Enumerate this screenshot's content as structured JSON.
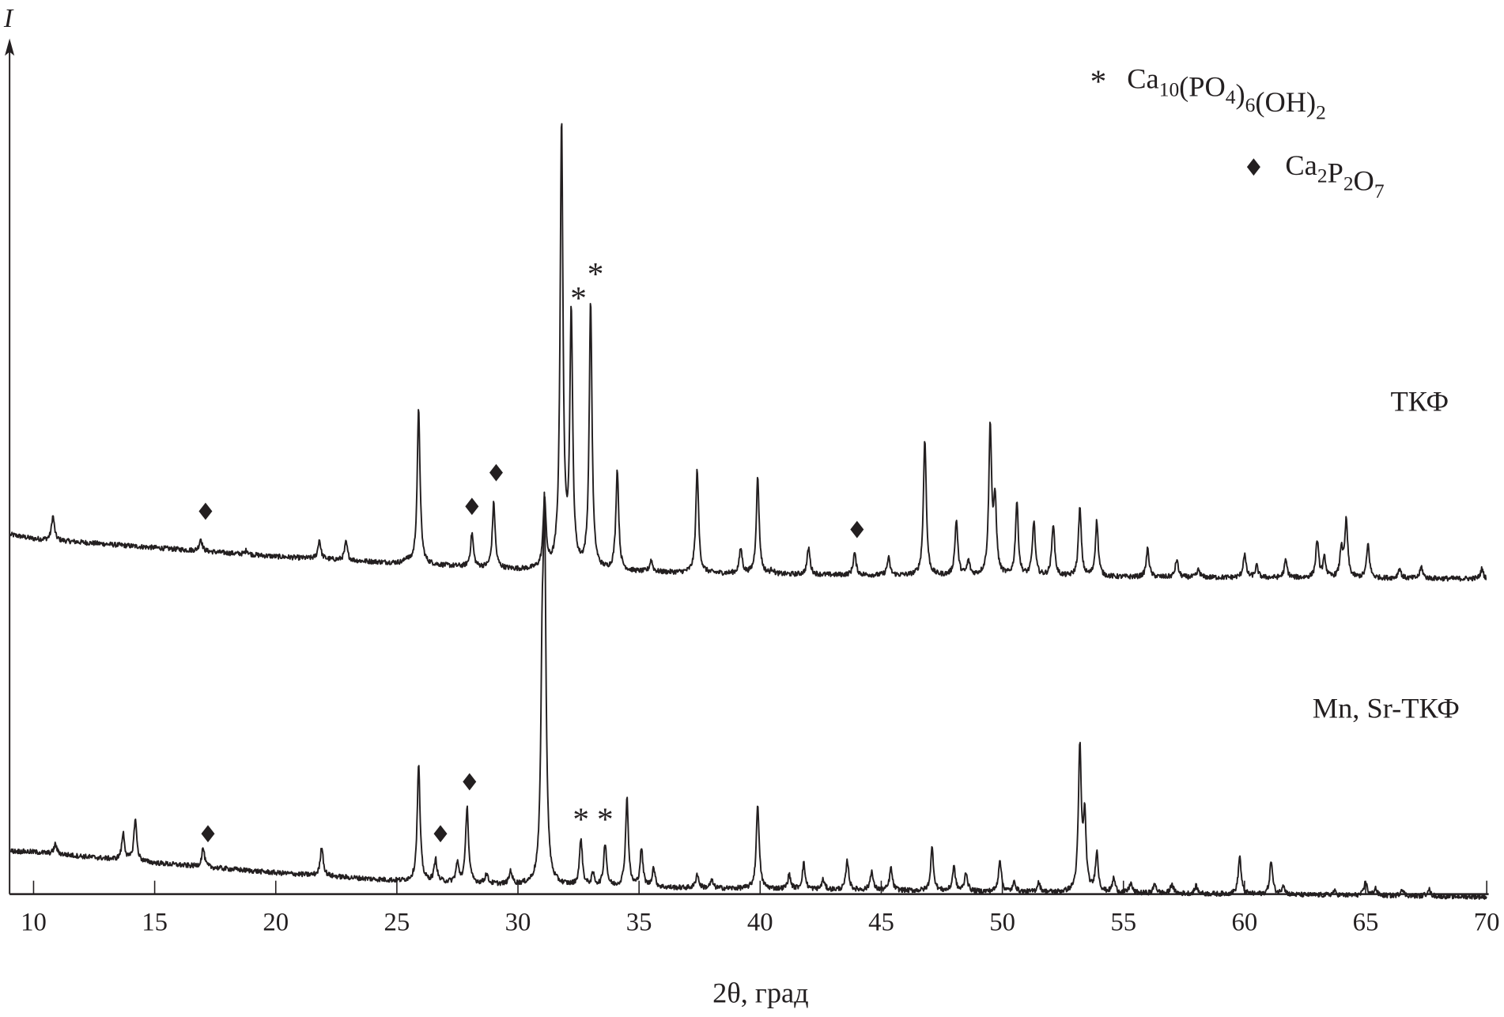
{
  "chart_data": {
    "type": "line",
    "title": "",
    "xlabel": "2θ, град",
    "ylabel": "I",
    "xlim": [
      9,
      70
    ],
    "xticks": [
      10,
      15,
      20,
      25,
      30,
      35,
      40,
      45,
      50,
      55,
      60,
      65,
      70
    ],
    "grid": false,
    "y_units": "relative intensity (tallest peak = 100), curves vertically offset",
    "legend": {
      "placement": "top-right",
      "entries": [
        {
          "marker": "asterisk",
          "label_main": "Ca",
          "label_parts": [
            [
              "Ca",
              ""
            ],
            [
              "10",
              "sub"
            ],
            [
              "(PO",
              ""
            ],
            [
              "4",
              "sub"
            ],
            [
              ")",
              ""
            ],
            [
              "6",
              "sub"
            ],
            [
              "(OH)",
              ""
            ],
            [
              "2",
              "sub"
            ]
          ],
          "text": "Ca10(PO4)6(OH)2"
        },
        {
          "marker": "diamond",
          "text": "Ca2P2O7",
          "label_parts": [
            [
              "Ca",
              ""
            ],
            [
              "2",
              "sub"
            ],
            [
              "P",
              ""
            ],
            [
              "2",
              "sub"
            ],
            [
              "O",
              ""
            ],
            [
              "7",
              "sub"
            ]
          ]
        }
      ]
    },
    "series": [
      {
        "name": "ТКФ",
        "baseline": [
          [
            9,
            81
          ],
          [
            10,
            80
          ],
          [
            20,
            76
          ],
          [
            30,
            73
          ],
          [
            40,
            72
          ],
          [
            50,
            71.5
          ],
          [
            70,
            71
          ]
        ],
        "peaks": [
          [
            10.8,
            5.4
          ],
          [
            16.9,
            2.8
          ],
          [
            18.8,
            1
          ],
          [
            21.8,
            4.3
          ],
          [
            22.9,
            4.1
          ],
          [
            25.4,
            1
          ],
          [
            25.9,
            35
          ],
          [
            28.1,
            7.6
          ],
          [
            29.0,
            14.7
          ],
          [
            31.1,
            15.8
          ],
          [
            31.8,
            100
          ],
          [
            32.2,
            56.8
          ],
          [
            33.0,
            60
          ],
          [
            34.1,
            22.7
          ],
          [
            35.5,
            2.6
          ],
          [
            37.4,
            23.3
          ],
          [
            39.2,
            5.6
          ],
          [
            39.9,
            21.8
          ],
          [
            40.5,
            1
          ],
          [
            42.0,
            6
          ],
          [
            43.9,
            5
          ],
          [
            45.3,
            3.9
          ],
          [
            46.8,
            30.7
          ],
          [
            48.1,
            12.5
          ],
          [
            48.6,
            3.2
          ],
          [
            49.5,
            33.3
          ],
          [
            49.7,
            16
          ],
          [
            50.6,
            16.6
          ],
          [
            51.3,
            12.3
          ],
          [
            52.1,
            11.9
          ],
          [
            53.2,
            15.3
          ],
          [
            53.9,
            12.5
          ],
          [
            56.0,
            6.3
          ],
          [
            57.2,
            3.9
          ],
          [
            58.1,
            1.7
          ],
          [
            60.0,
            5.2
          ],
          [
            60.5,
            2.6
          ],
          [
            61.7,
            3.9
          ],
          [
            63.0,
            8.4
          ],
          [
            63.3,
            4.3
          ],
          [
            64.0,
            6.5
          ],
          [
            64.2,
            12.7
          ],
          [
            65.1,
            7.6
          ],
          [
            66.4,
            2.2
          ],
          [
            67.3,
            2.6
          ],
          [
            69.8,
            2.2
          ]
        ],
        "markers": [
          {
            "type": "diamond",
            "x": 17.1,
            "y": 86.2
          },
          {
            "type": "diamond",
            "x": 28.1,
            "y": 87.3
          },
          {
            "type": "diamond",
            "x": 29.1,
            "y": 94.9
          },
          {
            "type": "diamond",
            "x": 44.0,
            "y": 82.1
          },
          {
            "type": "asterisk",
            "x": 32.5,
            "y": 134.8
          },
          {
            "type": "asterisk",
            "x": 33.2,
            "y": 140.2
          }
        ]
      },
      {
        "name": "Mn, Sr-ТКФ",
        "baseline": [
          [
            9,
            9.7
          ],
          [
            10,
            9.5
          ],
          [
            15,
            7
          ],
          [
            20,
            4.8
          ],
          [
            25,
            3
          ],
          [
            30,
            2
          ],
          [
            35,
            1.5
          ],
          [
            50,
            0.5
          ],
          [
            70,
            -0.6
          ]
        ],
        "peaks": [
          [
            10.9,
            2.2
          ],
          [
            13.7,
            6
          ],
          [
            14.2,
            9.5
          ],
          [
            17.0,
            4.3
          ],
          [
            21.9,
            6.7
          ],
          [
            25.9,
            26.3
          ],
          [
            26.6,
            5
          ],
          [
            27.5,
            4.3
          ],
          [
            27.9,
            17.3
          ],
          [
            28.7,
            2.2
          ],
          [
            29.7,
            3
          ],
          [
            31.0,
            40
          ],
          [
            31.1,
            74.5
          ],
          [
            32.6,
            10.6
          ],
          [
            33.1,
            2.6
          ],
          [
            33.6,
            9.7
          ],
          [
            34.5,
            20
          ],
          [
            35.1,
            8.6
          ],
          [
            35.6,
            4.3
          ],
          [
            37.4,
            3.2
          ],
          [
            38.0,
            1.7
          ],
          [
            39.9,
            19.2
          ],
          [
            41.2,
            3.2
          ],
          [
            41.8,
            5.8
          ],
          [
            42.6,
            2.2
          ],
          [
            43.6,
            6.5
          ],
          [
            44.6,
            4.3
          ],
          [
            45.4,
            5
          ],
          [
            47.1,
            9.7
          ],
          [
            48.0,
            5.4
          ],
          [
            48.5,
            4.3
          ],
          [
            49.9,
            7.3
          ],
          [
            50.5,
            2.2
          ],
          [
            51.5,
            2.2
          ],
          [
            53.2,
            32
          ],
          [
            53.4,
            16.4
          ],
          [
            53.9,
            8.9
          ],
          [
            54.6,
            3.2
          ],
          [
            55.3,
            2.2
          ],
          [
            56.3,
            2.2
          ],
          [
            57.0,
            2.2
          ],
          [
            58.0,
            1.7
          ],
          [
            59.8,
            8.6
          ],
          [
            61.1,
            7.6
          ],
          [
            61.6,
            2.2
          ],
          [
            63.7,
            1
          ],
          [
            65.0,
            3.2
          ],
          [
            65.4,
            1.7
          ],
          [
            66.5,
            1.7
          ],
          [
            67.6,
            1.7
          ]
        ],
        "markers": [
          {
            "type": "diamond",
            "x": 17.2,
            "y": 13.6
          },
          {
            "type": "diamond",
            "x": 26.8,
            "y": 13.6
          },
          {
            "type": "diamond",
            "x": 28.0,
            "y": 25.3
          },
          {
            "type": "asterisk",
            "x": 32.6,
            "y": 17.5
          },
          {
            "type": "asterisk",
            "x": 33.6,
            "y": 17.5
          }
        ]
      }
    ]
  }
}
